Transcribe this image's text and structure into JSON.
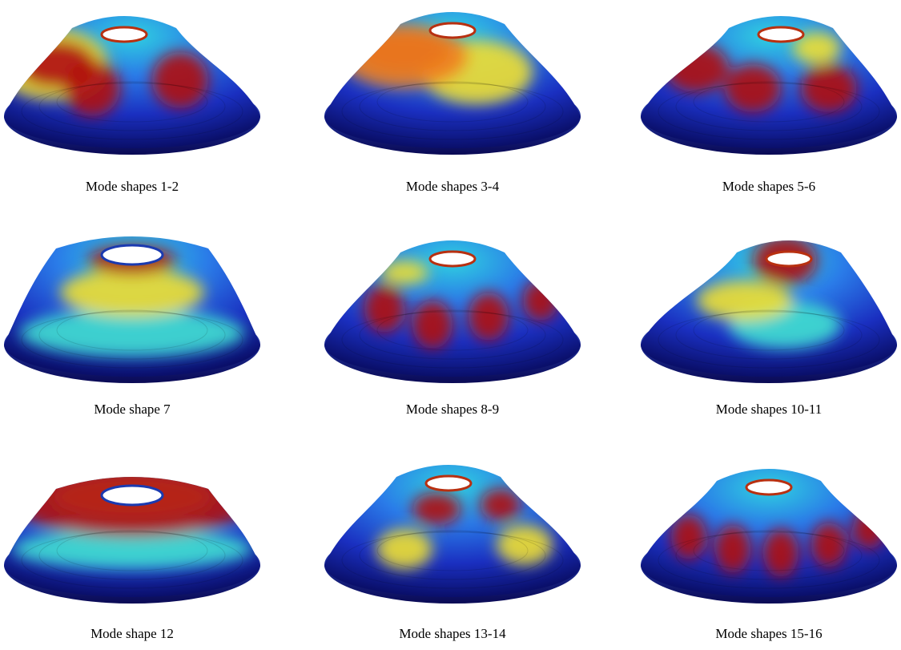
{
  "panels": [
    {
      "caption": "Mode shapes 1-2"
    },
    {
      "caption": "Mode shapes 3-4"
    },
    {
      "caption": "Mode shapes 5-6"
    },
    {
      "caption": "Mode shape 7"
    },
    {
      "caption": "Mode shapes 8-9"
    },
    {
      "caption": "Mode shapes 10-11"
    },
    {
      "caption": "Mode shape 12"
    },
    {
      "caption": "Mode shapes 13-14"
    },
    {
      "caption": "Mode shapes 15-16"
    }
  ]
}
